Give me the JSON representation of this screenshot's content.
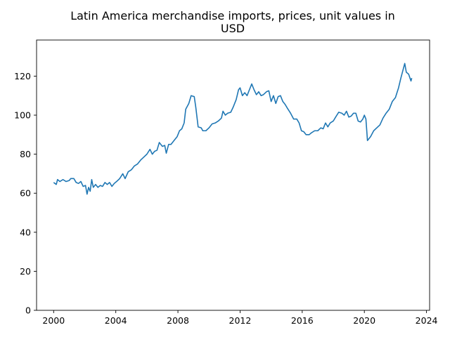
{
  "chart_data": {
    "type": "line",
    "title_lines": [
      "Latin America merchandise imports, prices, unit values in",
      "USD"
    ],
    "xlabel": "",
    "ylabel": "",
    "xlim": [
      1998.9,
      2024.2
    ],
    "ylim": [
      0,
      138.5
    ],
    "x_ticks": [
      2000,
      2004,
      2008,
      2012,
      2016,
      2020,
      2024
    ],
    "y_ticks": [
      0,
      20,
      40,
      60,
      80,
      100,
      120
    ],
    "grid": false,
    "legend": "none",
    "line_color": "#1f77b4",
    "series": [
      {
        "name": "",
        "points": [
          [
            2000.0,
            65.5
          ],
          [
            2000.17,
            64.5
          ],
          [
            2000.25,
            67.0
          ],
          [
            2000.4,
            66.0
          ],
          [
            2000.6,
            67.0
          ],
          [
            2000.8,
            66.0
          ],
          [
            2001.0,
            66.5
          ],
          [
            2001.1,
            67.5
          ],
          [
            2001.3,
            67.5
          ],
          [
            2001.45,
            65.5
          ],
          [
            2001.6,
            65.0
          ],
          [
            2001.75,
            66.0
          ],
          [
            2001.9,
            63.5
          ],
          [
            2002.05,
            64.0
          ],
          [
            2002.15,
            59.5
          ],
          [
            2002.25,
            63.0
          ],
          [
            2002.35,
            61.0
          ],
          [
            2002.45,
            67.0
          ],
          [
            2002.55,
            63.0
          ],
          [
            2002.7,
            64.5
          ],
          [
            2002.85,
            63.0
          ],
          [
            2003.0,
            64.0
          ],
          [
            2003.15,
            63.5
          ],
          [
            2003.3,
            65.5
          ],
          [
            2003.45,
            64.5
          ],
          [
            2003.6,
            65.5
          ],
          [
            2003.75,
            63.5
          ],
          [
            2003.9,
            65.0
          ],
          [
            2004.05,
            66.0
          ],
          [
            2004.25,
            67.5
          ],
          [
            2004.45,
            70.0
          ],
          [
            2004.6,
            67.5
          ],
          [
            2004.8,
            71.0
          ],
          [
            2005.0,
            72.0
          ],
          [
            2005.2,
            74.0
          ],
          [
            2005.4,
            75.0
          ],
          [
            2005.6,
            77.0
          ],
          [
            2005.8,
            78.5
          ],
          [
            2006.0,
            80.0
          ],
          [
            2006.2,
            82.5
          ],
          [
            2006.35,
            80.0
          ],
          [
            2006.5,
            81.5
          ],
          [
            2006.65,
            82.0
          ],
          [
            2006.8,
            86.0
          ],
          [
            2007.0,
            84.0
          ],
          [
            2007.15,
            84.5
          ],
          [
            2007.25,
            80.5
          ],
          [
            2007.4,
            85.0
          ],
          [
            2007.55,
            85.0
          ],
          [
            2007.75,
            87.0
          ],
          [
            2007.95,
            89.0
          ],
          [
            2008.1,
            92.0
          ],
          [
            2008.25,
            93.0
          ],
          [
            2008.4,
            96.0
          ],
          [
            2008.5,
            103.0
          ],
          [
            2008.7,
            106.0
          ],
          [
            2008.85,
            110.0
          ],
          [
            2009.05,
            109.5
          ],
          [
            2009.15,
            104.0
          ],
          [
            2009.3,
            94.0
          ],
          [
            2009.5,
            93.5
          ],
          [
            2009.6,
            92.0
          ],
          [
            2009.8,
            92.0
          ],
          [
            2010.0,
            93.5
          ],
          [
            2010.2,
            95.5
          ],
          [
            2010.4,
            96.0
          ],
          [
            2010.6,
            97.0
          ],
          [
            2010.8,
            98.5
          ],
          [
            2010.9,
            102.0
          ],
          [
            2011.05,
            100.0
          ],
          [
            2011.2,
            101.0
          ],
          [
            2011.4,
            101.5
          ],
          [
            2011.55,
            104.0
          ],
          [
            2011.75,
            108.0
          ],
          [
            2011.9,
            113.0
          ],
          [
            2012.0,
            114.0
          ],
          [
            2012.15,
            110.0
          ],
          [
            2012.3,
            111.5
          ],
          [
            2012.45,
            110.0
          ],
          [
            2012.6,
            113.0
          ],
          [
            2012.75,
            116.0
          ],
          [
            2012.9,
            113.0
          ],
          [
            2013.05,
            110.5
          ],
          [
            2013.2,
            112.0
          ],
          [
            2013.35,
            110.0
          ],
          [
            2013.5,
            110.5
          ],
          [
            2013.7,
            112.0
          ],
          [
            2013.85,
            112.5
          ],
          [
            2014.0,
            107.0
          ],
          [
            2014.15,
            110.0
          ],
          [
            2014.3,
            106.0
          ],
          [
            2014.45,
            109.5
          ],
          [
            2014.6,
            110.0
          ],
          [
            2014.75,
            107.0
          ],
          [
            2014.9,
            105.5
          ],
          [
            2015.05,
            103.5
          ],
          [
            2015.25,
            101.0
          ],
          [
            2015.45,
            98.0
          ],
          [
            2015.65,
            98.0
          ],
          [
            2015.8,
            96.0
          ],
          [
            2015.95,
            92.0
          ],
          [
            2016.1,
            91.5
          ],
          [
            2016.25,
            90.0
          ],
          [
            2016.45,
            90.0
          ],
          [
            2016.6,
            91.0
          ],
          [
            2016.8,
            92.0
          ],
          [
            2017.0,
            92.0
          ],
          [
            2017.2,
            93.5
          ],
          [
            2017.35,
            93.0
          ],
          [
            2017.5,
            96.0
          ],
          [
            2017.65,
            94.0
          ],
          [
            2017.8,
            96.0
          ],
          [
            2018.0,
            97.0
          ],
          [
            2018.15,
            99.0
          ],
          [
            2018.35,
            101.5
          ],
          [
            2018.55,
            101.0
          ],
          [
            2018.7,
            100.0
          ],
          [
            2018.85,
            102.0
          ],
          [
            2019.0,
            99.0
          ],
          [
            2019.15,
            99.5
          ],
          [
            2019.3,
            101.0
          ],
          [
            2019.45,
            101.0
          ],
          [
            2019.6,
            97.0
          ],
          [
            2019.75,
            96.5
          ],
          [
            2019.9,
            98.0
          ],
          [
            2020.0,
            100.0
          ],
          [
            2020.1,
            98.0
          ],
          [
            2020.2,
            87.0
          ],
          [
            2020.4,
            89.0
          ],
          [
            2020.6,
            92.0
          ],
          [
            2020.8,
            93.5
          ],
          [
            2021.0,
            95.0
          ],
          [
            2021.2,
            98.5
          ],
          [
            2021.4,
            101.0
          ],
          [
            2021.6,
            103.0
          ],
          [
            2021.8,
            107.0
          ],
          [
            2022.0,
            109.0
          ],
          [
            2022.2,
            114.0
          ],
          [
            2022.35,
            119.0
          ],
          [
            2022.5,
            123.5
          ],
          [
            2022.6,
            126.5
          ],
          [
            2022.7,
            122.0
          ],
          [
            2022.85,
            121.0
          ],
          [
            2023.0,
            117.5
          ],
          [
            2023.05,
            119.0
          ]
        ]
      }
    ]
  }
}
